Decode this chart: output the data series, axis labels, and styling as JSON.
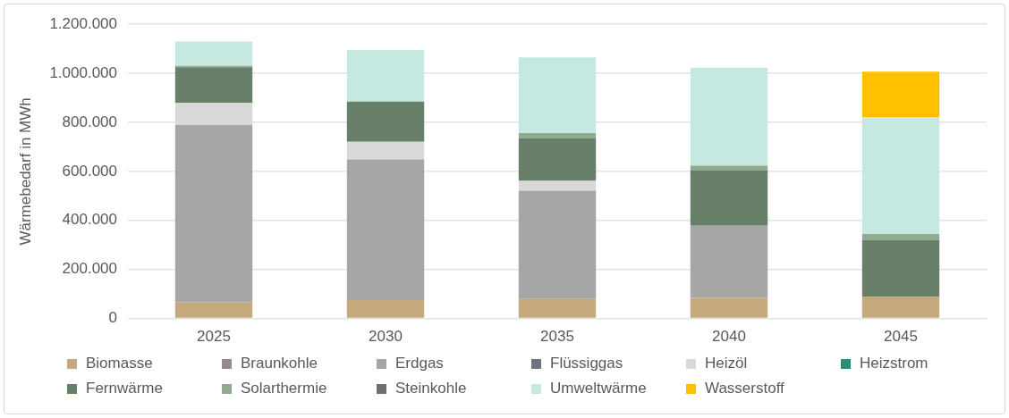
{
  "chart_data": {
    "type": "bar",
    "stacked": true,
    "ylabel": "Wärmebedarf in MWh",
    "categories": [
      "2025",
      "2030",
      "2035",
      "2040",
      "2045"
    ],
    "series": [
      {
        "name": "Biomasse",
        "color": "#c5a87c",
        "values": [
          65000,
          75000,
          80000,
          84000,
          88000
        ]
      },
      {
        "name": "Braunkohle",
        "color": "#948a8f",
        "values": [
          0,
          0,
          0,
          0,
          0
        ]
      },
      {
        "name": "Erdgas",
        "color": "#a6a6a6",
        "values": [
          725000,
          574000,
          441000,
          294000,
          0
        ]
      },
      {
        "name": "Flüssiggas",
        "color": "#6b7580",
        "values": [
          0,
          0,
          0,
          0,
          0
        ]
      },
      {
        "name": "Heizöl",
        "color": "#d9d9d9",
        "values": [
          90000,
          72000,
          40000,
          0,
          0
        ]
      },
      {
        "name": "Heizstrom",
        "color": "#2e8b74",
        "values": [
          0,
          0,
          0,
          0,
          0
        ]
      },
      {
        "name": "Fernwärme",
        "color": "#68806a",
        "values": [
          145000,
          164000,
          175000,
          225000,
          232000
        ]
      },
      {
        "name": "Solarthermie",
        "color": "#8faa8f",
        "values": [
          5000,
          0,
          20000,
          20000,
          25000
        ]
      },
      {
        "name": "Steinkohle",
        "color": "#6f6f74",
        "values": [
          0,
          0,
          0,
          0,
          0
        ]
      },
      {
        "name": "Umweltwärme",
        "color": "#c5e8e1",
        "values": [
          100000,
          210000,
          309000,
          400000,
          476000
        ]
      },
      {
        "name": "Wasserstoff",
        "color": "#ffc000",
        "values": [
          0,
          0,
          0,
          0,
          186000
        ]
      }
    ],
    "ylim": [
      0,
      1200000
    ],
    "yticks": [
      {
        "value": 0,
        "label": "0"
      },
      {
        "value": 200000,
        "label": "200.000"
      },
      {
        "value": 400000,
        "label": "400.000"
      },
      {
        "value": 600000,
        "label": "600.000"
      },
      {
        "value": 800000,
        "label": "800.000"
      },
      {
        "value": 1000000,
        "label": "1.000.000"
      },
      {
        "value": 1200000,
        "label": "1.200.000"
      }
    ],
    "grid": "y",
    "legend": "bottom"
  }
}
